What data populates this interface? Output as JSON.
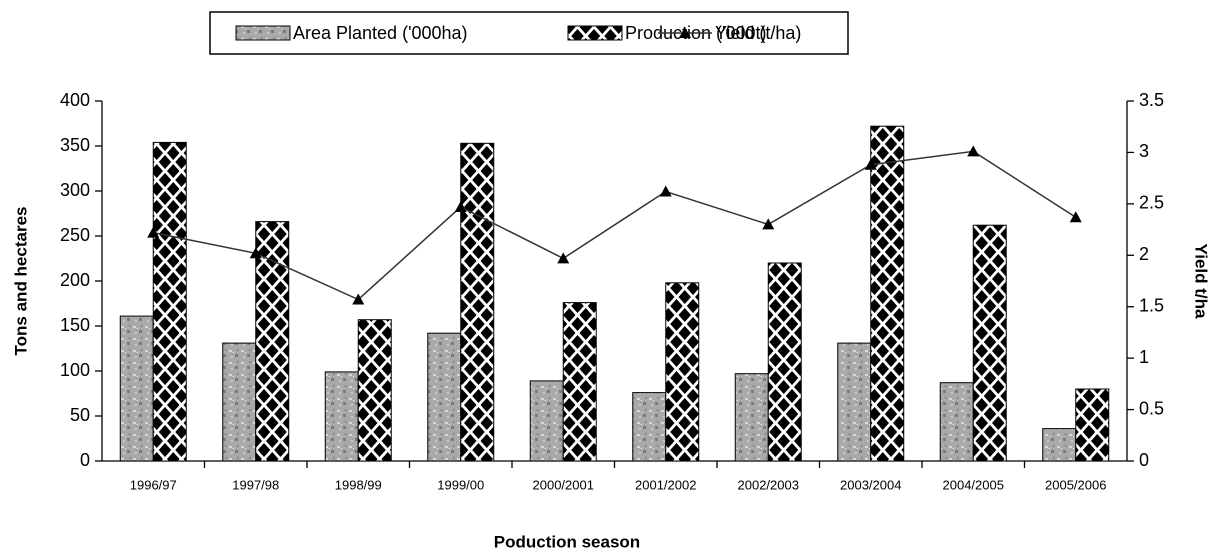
{
  "chart_data": {
    "type": "bar",
    "categories": [
      "1996/97",
      "1997/98",
      "1998/99",
      "1999/00",
      "2000/2001",
      "2001/2002",
      "2002/2003",
      "2003/2004",
      "2004/2005",
      "2005/2006"
    ],
    "series": [
      {
        "name": "Area Planted ('000ha)",
        "type": "bar",
        "color": "#a9a9a9",
        "values": [
          161,
          131,
          99,
          142,
          89,
          76,
          97,
          131,
          87,
          36
        ]
      },
      {
        "name": "Production ('000t)",
        "type": "bar",
        "color": "#000000",
        "values": [
          354,
          266,
          157,
          353,
          176,
          198,
          220,
          372,
          262,
          80
        ]
      },
      {
        "name": "Yield (t/ha)",
        "type": "line",
        "axis": "y2",
        "color": "#333333",
        "values": [
          2.22,
          2.02,
          1.57,
          2.47,
          1.97,
          2.62,
          2.3,
          2.88,
          3.01,
          2.37
        ]
      }
    ],
    "x_label": "Poduction season",
    "y_label": "Tons and hectares",
    "y2_label": "Yield  t/ha",
    "ylim": [
      0,
      400
    ],
    "yticks": [
      0,
      50,
      100,
      150,
      200,
      250,
      300,
      350,
      400
    ],
    "y2lim": [
      0,
      3.5
    ],
    "y2ticks": [
      0,
      0.5,
      1,
      1.5,
      2,
      2.5,
      3,
      3.5
    ],
    "grid": false,
    "legend": "top"
  }
}
